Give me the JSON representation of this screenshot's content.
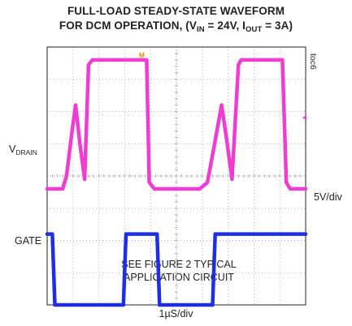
{
  "title_line1": "FULL-LOAD STEADY-STATE WAVEFORM",
  "title_line2_prefix": "FOR DCM OPERATION, (V",
  "title_vin_sub": "IN",
  "title_mid": " = 24V, I",
  "title_iout_sub": "OUT",
  "title_suffix": " = 3A)",
  "tag": "toc6",
  "labels": {
    "vdrain_main": "V",
    "vdrain_sub": "DRAIN",
    "gate": "GATE",
    "scale": "5V/div",
    "time": "1µS/div",
    "note_line1": "SEE FIGURE 2 TYPICAL",
    "note_line2": "APPLICATION CIRCUIT"
  },
  "colors": {
    "vdrain": "#f03cd2",
    "gate": "#1f2ee0",
    "grid": "#b4b4b4",
    "frame": "#231f20",
    "marker": "#e8a020"
  },
  "chart_data": {
    "type": "line",
    "xlabel": "1µS/div",
    "ylabel": "5V/div",
    "x_divisions": 10,
    "y_divisions": 8,
    "grid": true,
    "series": [
      {
        "name": "VDRAIN",
        "x": [
          0,
          0.3,
          0.6,
          0.75,
          0.95,
          1.1,
          1.25,
          1.45,
          1.6,
          1.75,
          1.9,
          2.1,
          3.85,
          3.95,
          4.15,
          5.3,
          5.9,
          6.2,
          6.5,
          6.75,
          6.95,
          7.15,
          7.4,
          7.5,
          7.7,
          9.1,
          9.25,
          9.4,
          10
        ],
        "y": [
          3.6,
          3.6,
          3.6,
          4.0,
          5.3,
          6.2,
          5.1,
          3.9,
          7.45,
          7.6,
          7.6,
          7.6,
          7.6,
          3.8,
          3.6,
          3.6,
          3.6,
          3.8,
          5.1,
          6.2,
          5.1,
          3.9,
          7.45,
          7.6,
          7.6,
          7.6,
          3.8,
          3.6,
          3.6
        ]
      },
      {
        "name": "GATE",
        "x": [
          0,
          0.05,
          0.2,
          0.3,
          1.0,
          2.95,
          3.05,
          4.0,
          4.25,
          4.35,
          4.6,
          5.8,
          6.4,
          6.5,
          9.95,
          10
        ],
        "y": [
          2.2,
          2.2,
          2.2,
          0,
          0,
          0,
          2.2,
          2.2,
          2.2,
          0,
          0,
          0,
          0,
          2.2,
          2.2,
          2.2
        ]
      }
    ]
  }
}
